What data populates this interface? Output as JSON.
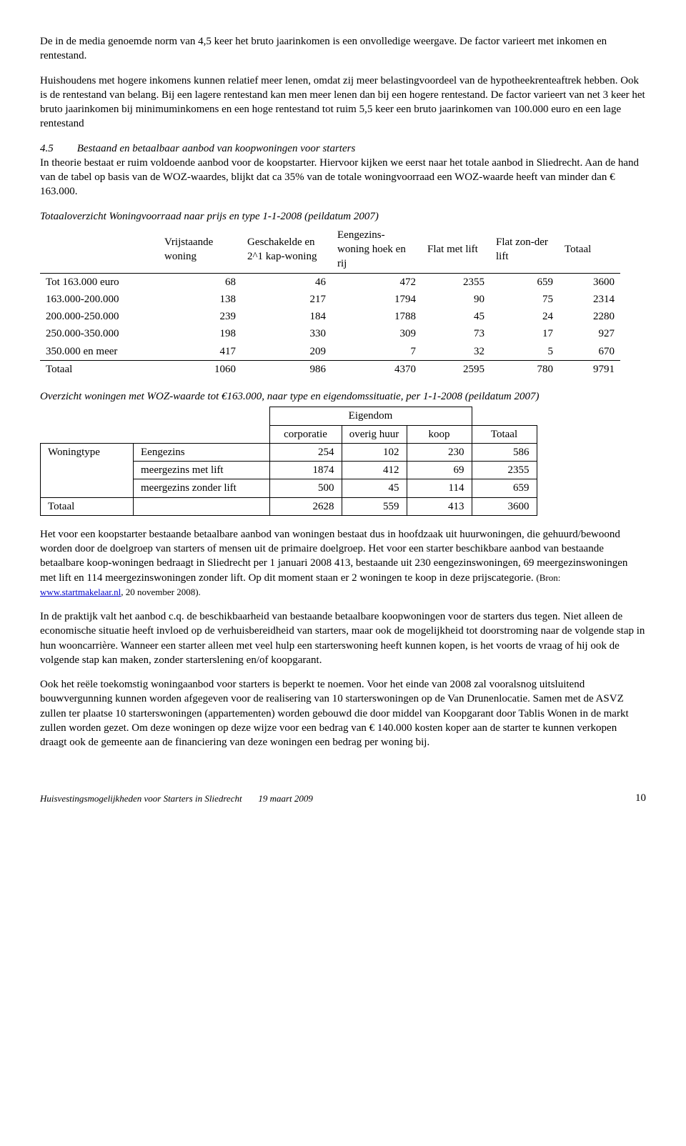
{
  "para1": "De in de media genoemde norm van 4,5 keer het bruto jaarinkomen is een onvolledige weergave. De factor varieert met inkomen en rentestand.",
  "para2": "Huishoudens met hogere inkomens kunnen relatief meer lenen, omdat zij meer belastingvoordeel van de hypotheekrenteaftrek hebben. Ook is de rentestand van belang. Bij een lagere rentestand kan men meer lenen dan bij een hogere rentestand. De factor varieert van net 3 keer het bruto jaarinkomen bij minimuminkomens en een hoge rentestand tot ruim 5,5 keer een bruto jaarinkomen van 100.000 euro en een lage rentestand",
  "section_num": "4.5",
  "section_title": "Bestaand en betaalbaar aanbod van koopwoningen voor starters",
  "para3": "In theorie bestaat er ruim voldoende aanbod voor de koopstarter. Hiervoor kijken we eerst naar het totale aanbod in Sliedrecht. Aan de hand van de tabel op basis van de WOZ-waardes, blijkt dat ca 35% van de totale woningvoorraad een WOZ-waarde heeft van minder dan € 163.000.",
  "tbl1_caption": "Totaaloverzicht Woningvoorraad naar prijs en type 1-1-2008 (peildatum 2007)",
  "tbl1_headers": [
    "",
    "Vrijstaande woning",
    "Geschakelde en 2^1 kap-woning",
    "Eengezins-woning hoek en rij",
    "Flat met lift",
    "Flat zon-der lift",
    "Totaal"
  ],
  "tbl1_rows": [
    [
      "Tot 163.000 euro",
      "68",
      "46",
      "472",
      "2355",
      "659",
      "3600"
    ],
    [
      "163.000-200.000",
      "138",
      "217",
      "1794",
      "90",
      "75",
      "2314"
    ],
    [
      "200.000-250.000",
      "239",
      "184",
      "1788",
      "45",
      "24",
      "2280"
    ],
    [
      "250.000-350.000",
      "198",
      "330",
      "309",
      "73",
      "17",
      "927"
    ],
    [
      "350.000 en meer",
      "417",
      "209",
      "7",
      "32",
      "5",
      "670"
    ]
  ],
  "tbl1_total": [
    "Totaal",
    "1060",
    "986",
    "4370",
    "2595",
    "780",
    "9791"
  ],
  "tbl2_caption": "Overzicht woningen met WOZ-waarde tot €163.000, naar type en eigendomssituatie, per 1-1-2008 (peildatum 2007)",
  "tbl2_group": "Eigendom",
  "tbl2_cols": [
    "corporatie",
    "overig huur",
    "koop",
    "Totaal"
  ],
  "tbl2_left1": "Woningtype",
  "tbl2_left2": "Totaal",
  "tbl2_rows": [
    [
      "Eengezins",
      "254",
      "102",
      "230",
      "586"
    ],
    [
      "meergezins met lift",
      "1874",
      "412",
      "69",
      "2355"
    ],
    [
      "meergezins zonder lift",
      "500",
      "45",
      "114",
      "659"
    ]
  ],
  "tbl2_total": [
    "",
    "2628",
    "559",
    "413",
    "3600"
  ],
  "para4a": "Het voor een koopstarter bestaande betaalbare aanbod van woningen bestaat dus in hoofdzaak uit huurwoningen, die gehuurd/bewoond worden door de doelgroep van starters of mensen uit de primaire doelgroep. Het voor een starter beschikbare aanbod van bestaande betaalbare koop-woningen bedraagt in Sliedrecht per 1 januari 2008  413, bestaande uit 230 eengezinswoningen, 69 meergezinswoningen met lift en 114 meergezinswoningen zonder lift. Op dit moment staan er 2  woningen te koop in deze prijscategorie. ",
  "para4_bron_label": "(Bron: ",
  "para4_link": "www.startmakelaar.nl",
  "para4_bron_tail": ", 20 november 2008).",
  "para5": "In de praktijk valt het aanbod c.q. de beschikbaarheid van bestaande betaalbare koopwoningen voor de starters dus tegen. Niet alleen de economische situatie heeft invloed op de verhuisbereidheid van starters, maar ook de mogelijkheid tot doorstroming naar de volgende stap in hun wooncarrière. Wanneer een starter alleen met veel hulp een starterswoning heeft kunnen kopen, is het voorts de vraag of hij ook de volgende stap kan maken, zonder starterslening en/of koopgarant.",
  "para6": "Ook het reële toekomstig woningaanbod voor starters is beperkt te noemen. Voor het einde van 2008 zal vooralsnog uitsluitend bouwvergunning kunnen worden afgegeven voor de realisering van 10 starterswoningen op de Van Drunenlocatie. Samen met de ASVZ zullen ter plaatse 10 starterswoningen (appartementen) worden gebouwd die door middel van Koopgarant door Tablis Wonen in de markt zullen worden gezet. Om deze woningen op deze wijze voor een bedrag van € 140.000 kosten koper aan de starter te kunnen verkopen draagt ook de gemeente aan de financiering van deze woningen een bedrag per woning bij.",
  "footer_title": "Huisvestingsmogelijkheden voor Starters in Sliedrecht",
  "footer_date": "19 maart  2009",
  "footer_page": "10"
}
